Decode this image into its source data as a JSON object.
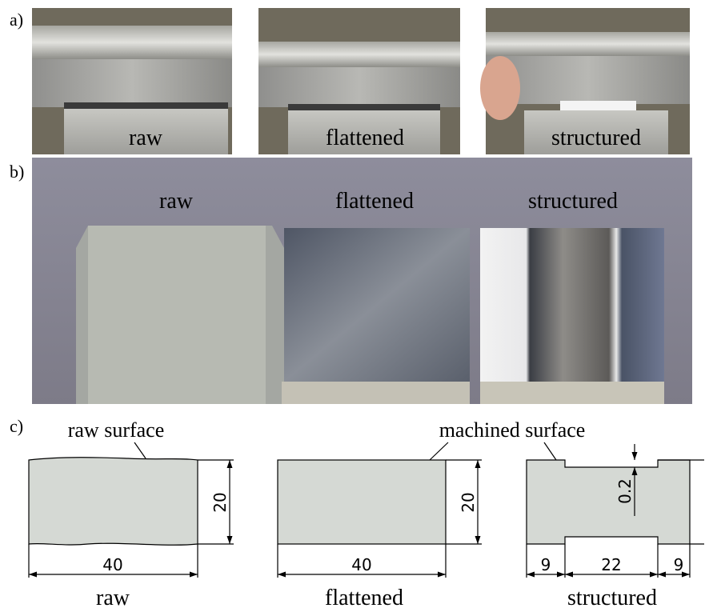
{
  "panels": [
    {
      "label": "a)",
      "captions": [
        "raw",
        "flattened",
        "structured"
      ]
    },
    {
      "label": "b)",
      "captions": [
        "raw",
        "flattened",
        "structured"
      ]
    },
    {
      "label": "c)",
      "annotations": [
        "raw surface",
        "machined surface"
      ],
      "profiles": [
        {
          "caption": "raw",
          "width": 40,
          "height": 20
        },
        {
          "caption": "flattened",
          "width": 40,
          "height": 20
        },
        {
          "caption": "structured",
          "depth": 0.2,
          "dims": [
            9,
            22,
            9
          ]
        }
      ]
    }
  ]
}
